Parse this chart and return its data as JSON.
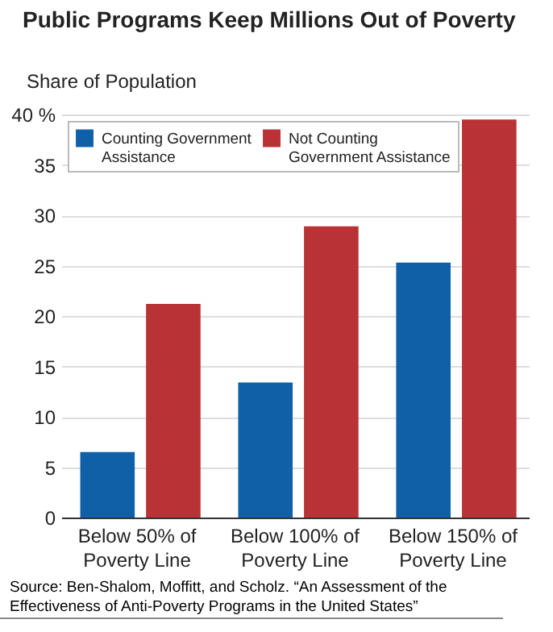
{
  "chart_data": {
    "type": "bar",
    "title": "Public Programs Keep Millions Out of Poverty",
    "ylabel": "Share of Population",
    "categories": [
      "Below 50% of\nPoverty Line",
      "Below 100% of\nPoverty Line",
      "Below 150% of\nPoverty Line"
    ],
    "series": [
      {
        "name": "Counting Government\nAssistance",
        "color": "#1060a8",
        "values": [
          6.5,
          13.4,
          25.3
        ]
      },
      {
        "name": "Not Counting\nGovernment Assistance",
        "color": "#b83236",
        "values": [
          21.2,
          28.9,
          39.5
        ]
      }
    ],
    "ylim": [
      0,
      40
    ],
    "yticks": [
      0,
      5,
      10,
      15,
      20,
      25,
      30,
      35,
      {
        "value": 40,
        "label": "40 %"
      }
    ],
    "grid": "y",
    "legend": "top left",
    "annotations": [
      "Source: Ben-Shalom, Moffitt, and Scholz. “An Assessment of the Effectiveness of Anti-Poverty Programs in the United States”"
    ]
  }
}
